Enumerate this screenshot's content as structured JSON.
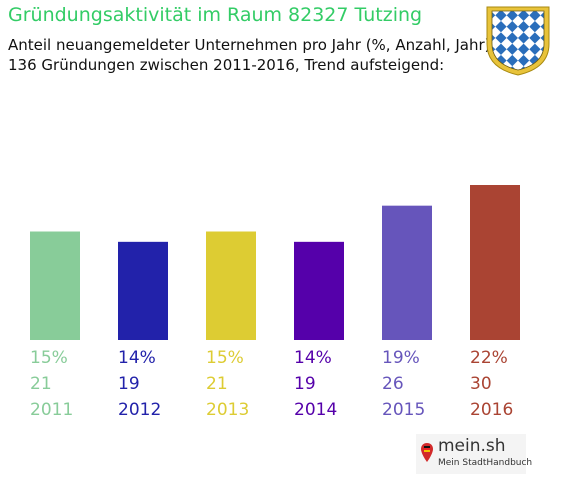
{
  "header": {
    "title": "Gründungsaktivität im Raum 82327 Tutzing",
    "subtitle_line1": "Anteil neuangemeldeter Unternehmen pro Jahr (%, Anzahl, Jahr)",
    "subtitle_line2": "136 Gründungen zwischen 2011-2016, Trend aufsteigend:"
  },
  "emblem": {
    "icon": "bavarian-coat-of-arms-icon",
    "colors": [
      "#2a6ebb",
      "#ffffff",
      "#c8a000"
    ]
  },
  "brand": {
    "name": "mein.sh",
    "tagline": "Mein StadtHandbuch"
  },
  "chart_data": {
    "type": "bar",
    "categories": [
      "2011",
      "2012",
      "2013",
      "2014",
      "2015",
      "2016"
    ],
    "percent_labels": [
      "15%",
      "14%",
      "15%",
      "14%",
      "19%",
      "22%"
    ],
    "values": [
      21,
      19,
      21,
      19,
      26,
      30
    ],
    "colors": [
      "#88cc99",
      "#2222aa",
      "#ddcc33",
      "#5500aa",
      "#6655bb",
      "#aa4433"
    ]
  }
}
